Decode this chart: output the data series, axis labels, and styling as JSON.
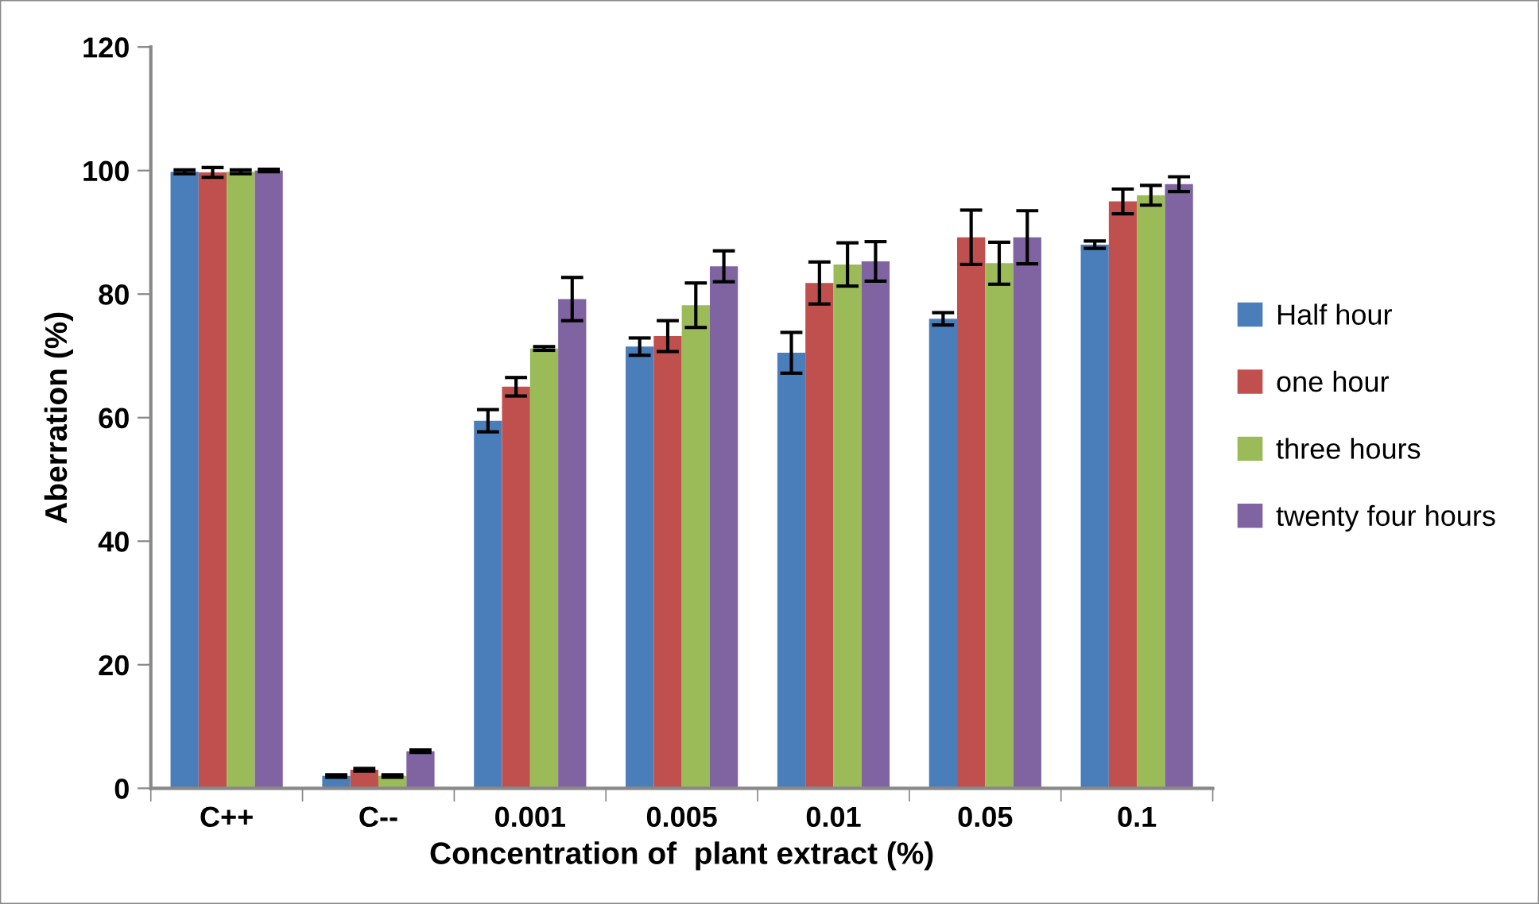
{
  "chart_data": {
    "type": "bar",
    "xlabel": "Concentration of  plant extract (%)",
    "ylabel": "Aberration (%)",
    "categories": [
      "C++",
      "C--",
      "0.001",
      "0.005",
      "0.01",
      "0.05",
      "0.1"
    ],
    "ylim": [
      0,
      120
    ],
    "yticks": [
      0,
      20,
      40,
      60,
      80,
      100,
      120
    ],
    "grid": false,
    "legend": "right",
    "series": [
      {
        "name": "Half hour",
        "color": "#4a7ebb",
        "values": [
          99.8,
          2,
          59.5,
          71.5,
          70.5,
          76,
          88
        ],
        "errors": [
          0.3,
          0.2,
          1.8,
          1.4,
          3.3,
          1,
          0.6
        ]
      },
      {
        "name": "one hour",
        "color": "#c0504d",
        "values": [
          99.7,
          3,
          65,
          73.2,
          81.8,
          89.2,
          95
        ],
        "errors": [
          0.8,
          0.2,
          1.5,
          2.5,
          3.4,
          4.4,
          2
        ]
      },
      {
        "name": "three hours",
        "color": "#9bbb59",
        "values": [
          99.8,
          2,
          71.2,
          78.2,
          84.8,
          85,
          96
        ],
        "errors": [
          0.3,
          0.2,
          0.3,
          3.6,
          3.5,
          3.4,
          1.6
        ]
      },
      {
        "name": "twenty four hours",
        "color": "#8064a2",
        "values": [
          100,
          6,
          79.2,
          84.5,
          85.3,
          89.2,
          97.8
        ],
        "errors": [
          0.2,
          0.2,
          3.5,
          2.5,
          3.2,
          4.3,
          1.2
        ]
      }
    ]
  }
}
